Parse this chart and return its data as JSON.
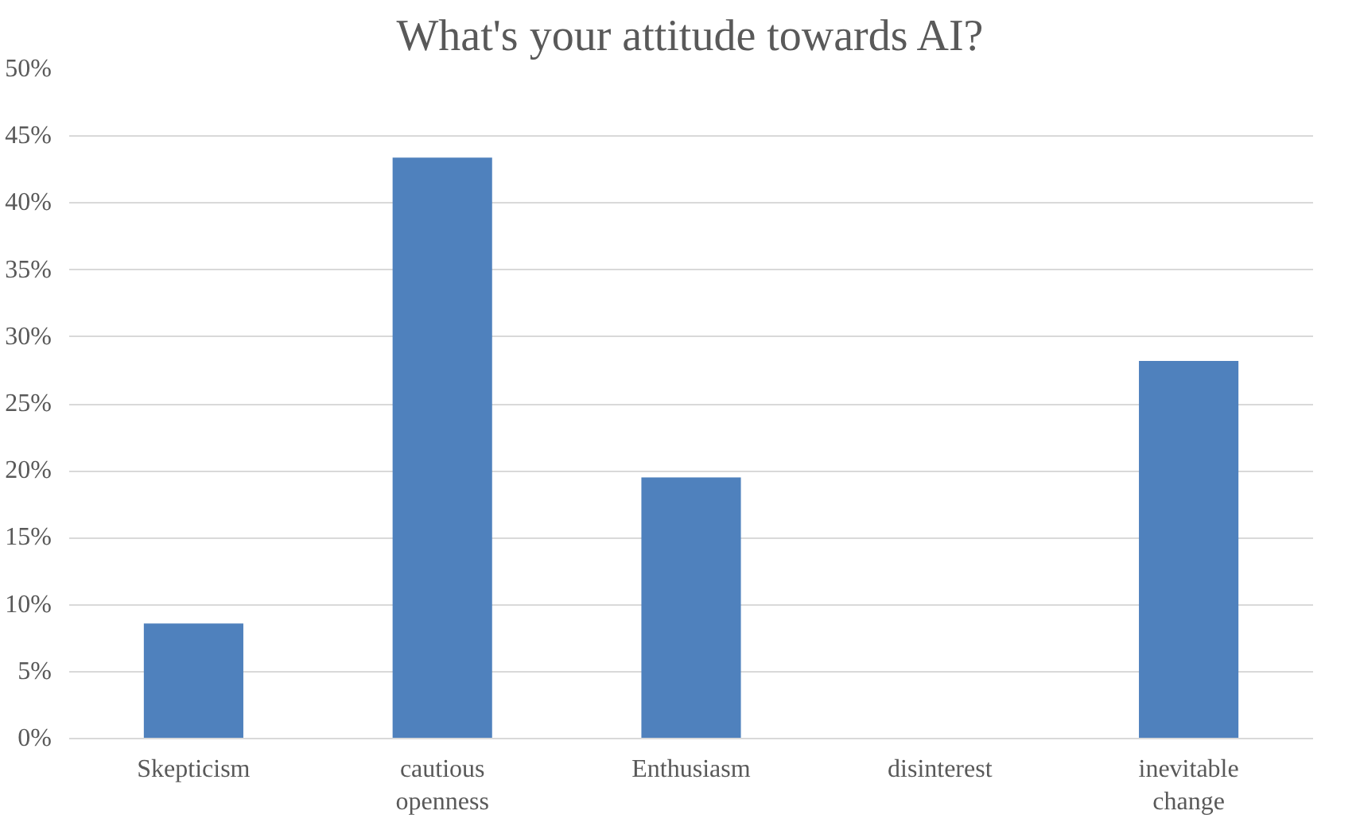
{
  "chart_data": {
    "type": "bar",
    "title": "What's your attitude towards AI?",
    "categories": [
      "Skepticism",
      "cautious\nopenness",
      "Enthusiasm",
      "disinterest",
      "inevitable\nchange"
    ],
    "values": [
      8.6,
      43.4,
      19.5,
      0,
      28.2
    ],
    "color": "#4f81bd",
    "ylim": [
      0,
      50
    ],
    "yticks": [
      {
        "value": 0,
        "label": "0%"
      },
      {
        "value": 5,
        "label": "5%"
      },
      {
        "value": 10,
        "label": "10%"
      },
      {
        "value": 15,
        "label": "15%"
      },
      {
        "value": 20,
        "label": "20%"
      },
      {
        "value": 25,
        "label": "25%"
      },
      {
        "value": 30,
        "label": "30%"
      },
      {
        "value": 35,
        "label": "35%"
      },
      {
        "value": 40,
        "label": "40%"
      },
      {
        "value": 45,
        "label": "45%"
      },
      {
        "value": 50,
        "label": "50%"
      }
    ],
    "grid": "y"
  }
}
